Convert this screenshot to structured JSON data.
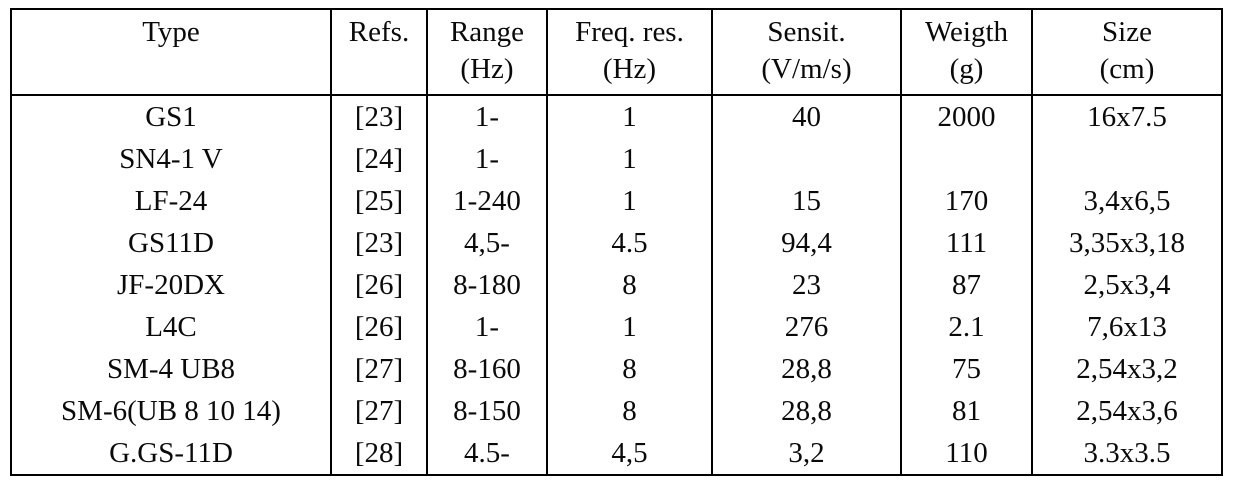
{
  "table": {
    "columns": [
      {
        "label": "Type",
        "unit": ""
      },
      {
        "label": "Refs.",
        "unit": ""
      },
      {
        "label": "Range",
        "unit": "(Hz)"
      },
      {
        "label": "Freq. res.",
        "unit": "(Hz)"
      },
      {
        "label": "Sensit.",
        "unit": "(V/m/s)"
      },
      {
        "label": "Weigth",
        "unit": "(g)"
      },
      {
        "label": "Size",
        "unit": "(cm)"
      }
    ],
    "rows": [
      [
        "GS1",
        "[23]",
        "1-",
        "1",
        "40",
        "2000",
        "16x7.5"
      ],
      [
        "SN4-1 V",
        "[24]",
        "1-",
        "1",
        "",
        "",
        ""
      ],
      [
        "LF-24",
        "[25]",
        "1-240",
        "1",
        "15",
        "170",
        "3,4x6,5"
      ],
      [
        "GS11D",
        "[23]",
        "4,5-",
        "4.5",
        "94,4",
        "111",
        "3,35x3,18"
      ],
      [
        "JF-20DX",
        "[26]",
        "8-180",
        "8",
        "23",
        "87",
        "2,5x3,4"
      ],
      [
        "L4C",
        "[26]",
        "1-",
        "1",
        "276",
        "2.1",
        "7,6x13"
      ],
      [
        "SM-4 UB8",
        "[27]",
        "8-160",
        "8",
        "28,8",
        "75",
        "2,54x3,2"
      ],
      [
        "SM-6(UB 8 10 14)",
        "[27]",
        "8-150",
        "8",
        "28,8",
        "81",
        "2,54x3,6"
      ],
      [
        "G.GS-11D",
        "[28]",
        "4.5-",
        "4,5",
        "3,2",
        "110",
        "3.3x3.5"
      ]
    ]
  }
}
